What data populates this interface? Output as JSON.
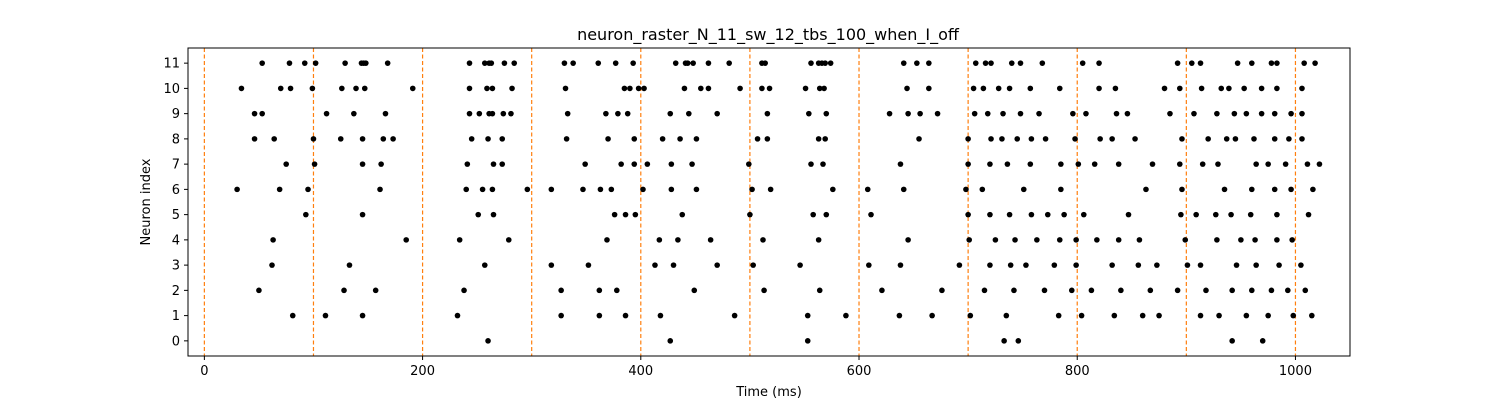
{
  "chart_data": {
    "type": "scatter",
    "title": "neuron_raster_N_11_sw_12_tbs_100_when_I_off",
    "xlabel": "Time (ms)",
    "ylabel": "Neuron index",
    "xlim": [
      -15,
      1050
    ],
    "ylim": [
      -0.6,
      11.6
    ],
    "xticks": [
      0,
      200,
      400,
      600,
      800,
      1000
    ],
    "yticks": [
      0,
      1,
      2,
      3,
      4,
      5,
      6,
      7,
      8,
      9,
      10,
      11
    ],
    "marker_color": "#000000",
    "vline_color": "#ff7f0e",
    "vlines": [
      0,
      100,
      200,
      300,
      400,
      500,
      600,
      700,
      800,
      900,
      1000
    ],
    "grid": false,
    "series": [
      {
        "y": 11,
        "x": [
          53,
          78,
          92,
          102,
          129,
          144,
          146,
          148,
          168,
          243,
          257,
          261,
          263,
          275,
          284,
          330,
          338,
          361,
          377,
          393,
          432,
          441,
          443,
          448,
          462,
          481,
          511,
          514,
          556,
          563,
          566,
          569,
          574,
          641,
          653,
          664,
          707,
          716,
          721,
          740,
          748,
          768,
          805,
          820,
          892,
          905,
          913,
          947,
          960,
          978,
          983,
          1008,
          1018
        ]
      },
      {
        "y": 10,
        "x": [
          34,
          70,
          79,
          99,
          126,
          139,
          147,
          191,
          243,
          259,
          264,
          282,
          331,
          385,
          390,
          398,
          403,
          440,
          455,
          462,
          491,
          511,
          518,
          551,
          564,
          568,
          644,
          664,
          705,
          714,
          728,
          738,
          757,
          784,
          820,
          835,
          880,
          894,
          914,
          932,
          939,
          953,
          969,
          983,
          1006
        ]
      },
      {
        "y": 9,
        "x": [
          46,
          53,
          112,
          137,
          166,
          243,
          252,
          261,
          264,
          274,
          281,
          333,
          368,
          379,
          388,
          427,
          444,
          470,
          516,
          554,
          570,
          628,
          645,
          656,
          672,
          706,
          718,
          732,
          748,
          765,
          796,
          808,
          836,
          846,
          885,
          907,
          928,
          944,
          955,
          969,
          981,
          996,
          1006
        ]
      },
      {
        "y": 8,
        "x": [
          46,
          64,
          100,
          125,
          145,
          164,
          173,
          245,
          260,
          273,
          332,
          370,
          394,
          420,
          436,
          451,
          507,
          516,
          563,
          569,
          655,
          700,
          721,
          731,
          745,
          758,
          771,
          798,
          821,
          832,
          853,
          896,
          920,
          937,
          945,
          962,
          981,
          994,
          1006
        ]
      },
      {
        "y": 7,
        "x": [
          75,
          101,
          145,
          162,
          241,
          265,
          273,
          349,
          382,
          394,
          406,
          428,
          447,
          499,
          556,
          567,
          638,
          700,
          720,
          736,
          757,
          785,
          801,
          816,
          838,
          869,
          894,
          915,
          929,
          964,
          975,
          991,
          1011,
          1022
        ]
      },
      {
        "y": 6,
        "x": [
          30,
          69,
          95,
          161,
          240,
          255,
          264,
          296,
          318,
          347,
          363,
          373,
          402,
          428,
          451,
          502,
          519,
          576,
          608,
          641,
          698,
          713,
          751,
          785,
          863,
          896,
          935,
          960,
          981,
          996,
          1016
        ]
      },
      {
        "y": 5,
        "x": [
          93,
          145,
          251,
          265,
          376,
          386,
          395,
          438,
          500,
          558,
          570,
          611,
          700,
          720,
          738,
          758,
          773,
          788,
          806,
          847,
          895,
          909,
          927,
          941,
          959,
          983,
          1012
        ]
      },
      {
        "y": 4,
        "x": [
          63,
          185,
          234,
          279,
          369,
          417,
          434,
          464,
          512,
          563,
          645,
          701,
          725,
          743,
          763,
          784,
          799,
          818,
          838,
          857,
          899,
          928,
          950,
          963,
          983,
          997
        ]
      },
      {
        "y": 3,
        "x": [
          62,
          133,
          257,
          318,
          352,
          413,
          430,
          470,
          503,
          546,
          609,
          638,
          692,
          720,
          739,
          753,
          779,
          799,
          832,
          856,
          873,
          901,
          913,
          946,
          964,
          985,
          1005
        ]
      },
      {
        "y": 2,
        "x": [
          50,
          128,
          157,
          238,
          327,
          362,
          378,
          449,
          513,
          564,
          621,
          676,
          715,
          742,
          770,
          795,
          813,
          840,
          867,
          892,
          918,
          942,
          960,
          978,
          993,
          1009
        ]
      },
      {
        "y": 1,
        "x": [
          81,
          111,
          145,
          232,
          327,
          362,
          386,
          418,
          486,
          553,
          588,
          637,
          667,
          702,
          735,
          783,
          804,
          834,
          860,
          875,
          913,
          930,
          955,
          975,
          998,
          1015
        ]
      },
      {
        "y": 0,
        "x": [
          260,
          427,
          553,
          733,
          746,
          942,
          970
        ]
      }
    ]
  }
}
